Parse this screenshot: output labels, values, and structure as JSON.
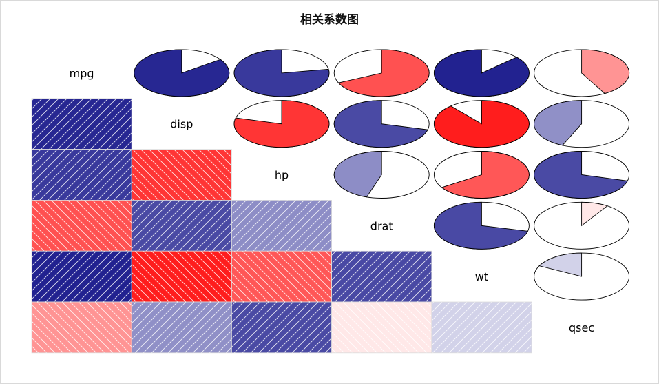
{
  "chart_data": {
    "type": "corrgram",
    "title": "相关系数图",
    "variables": [
      "mpg",
      "disp",
      "hp",
      "drat",
      "wt",
      "qsec"
    ],
    "lower_panel": "shade",
    "upper_panel": "pie",
    "color_scale": {
      "negative": "#00007F",
      "zero": "#FFFFFF",
      "positive": "#FF0000"
    },
    "correlations": [
      [
        1.0,
        -0.848,
        -0.776,
        0.681,
        -0.868,
        0.419
      ],
      [
        -0.848,
        1.0,
        0.791,
        -0.71,
        0.888,
        -0.434
      ],
      [
        -0.776,
        0.791,
        1.0,
        -0.449,
        0.659,
        -0.708
      ],
      [
        0.681,
        -0.71,
        -0.449,
        1.0,
        -0.712,
        0.091
      ],
      [
        -0.868,
        0.888,
        0.659,
        -0.712,
        1.0,
        -0.175
      ],
      [
        0.419,
        -0.434,
        -0.708,
        0.091,
        -0.175,
        1.0
      ]
    ]
  }
}
